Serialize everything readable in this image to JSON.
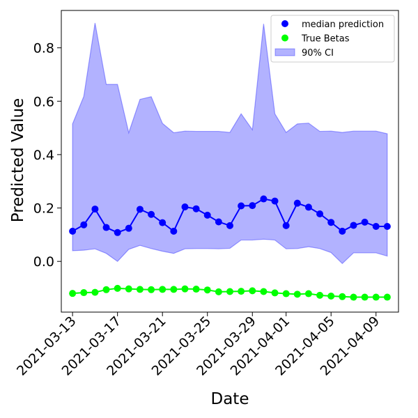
{
  "chart_data": {
    "type": "line",
    "title": "",
    "xlabel": "Date",
    "ylabel": "Predicted Value",
    "ylim": [
      -0.19,
      0.94
    ],
    "xlim": [
      "2021-03-12",
      "2021-04-11"
    ],
    "x_tick_labels": [
      "2021-03-13",
      "2021-03-17",
      "2021-03-21",
      "2021-03-25",
      "2021-03-29",
      "2021-04-01",
      "2021-04-05",
      "2021-04-09"
    ],
    "y_ticks": [
      0.0,
      0.2,
      0.4,
      0.6,
      0.8
    ],
    "y_tick_labels": [
      "0.0",
      "0.2",
      "0.4",
      "0.6",
      "0.8"
    ],
    "legend_position": "top-right",
    "grid": false,
    "x": [
      "2021-03-13",
      "2021-03-14",
      "2021-03-15",
      "2021-03-16",
      "2021-03-17",
      "2021-03-18",
      "2021-03-19",
      "2021-03-20",
      "2021-03-21",
      "2021-03-22",
      "2021-03-23",
      "2021-03-24",
      "2021-03-25",
      "2021-03-26",
      "2021-03-27",
      "2021-03-28",
      "2021-03-29",
      "2021-03-30",
      "2021-03-31",
      "2021-04-01",
      "2021-04-02",
      "2021-04-03",
      "2021-04-04",
      "2021-04-05",
      "2021-04-06",
      "2021-04-07",
      "2021-04-08",
      "2021-04-09",
      "2021-04-10"
    ],
    "series": [
      {
        "name": "median prediction",
        "kind": "line-marker",
        "color": "#0000ff",
        "values": [
          0.113,
          0.137,
          0.196,
          0.127,
          0.108,
          0.124,
          0.195,
          0.176,
          0.145,
          0.113,
          0.204,
          0.197,
          0.173,
          0.148,
          0.134,
          0.208,
          0.209,
          0.234,
          0.226,
          0.134,
          0.218,
          0.203,
          0.178,
          0.146,
          0.113,
          0.135,
          0.147,
          0.131,
          0.131
        ]
      },
      {
        "name": "True Betas",
        "kind": "line-marker",
        "color": "#00ff00",
        "values": [
          -0.12,
          -0.117,
          -0.116,
          -0.106,
          -0.101,
          -0.103,
          -0.105,
          -0.106,
          -0.105,
          -0.105,
          -0.103,
          -0.104,
          -0.107,
          -0.114,
          -0.113,
          -0.112,
          -0.11,
          -0.113,
          -0.118,
          -0.121,
          -0.123,
          -0.121,
          -0.127,
          -0.13,
          -0.132,
          -0.134,
          -0.134,
          -0.134,
          -0.134
        ]
      },
      {
        "name": "90% CI",
        "kind": "band",
        "color": "#0000ff",
        "lower": [
          0.04,
          0.042,
          0.047,
          0.03,
          0.0,
          0.045,
          0.06,
          0.048,
          0.038,
          0.03,
          0.047,
          0.048,
          0.048,
          0.047,
          0.049,
          0.08,
          0.08,
          0.083,
          0.08,
          0.047,
          0.048,
          0.055,
          0.048,
          0.033,
          -0.008,
          0.032,
          0.032,
          0.032,
          0.02
        ],
        "upper": [
          0.515,
          0.618,
          0.893,
          0.663,
          0.663,
          0.482,
          0.607,
          0.617,
          0.517,
          0.482,
          0.488,
          0.487,
          0.487,
          0.487,
          0.483,
          0.553,
          0.493,
          0.89,
          0.553,
          0.483,
          0.515,
          0.518,
          0.487,
          0.488,
          0.483,
          0.488,
          0.488,
          0.488,
          0.478
        ]
      }
    ]
  }
}
